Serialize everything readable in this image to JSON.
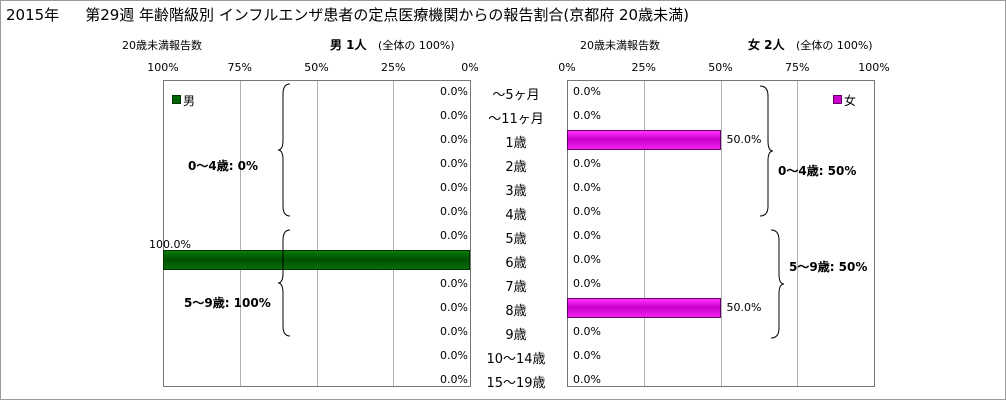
{
  "title": {
    "year": "2015年",
    "text": "第29週 年齢階級別 インフルエンザ患者の定点医療機関からの報告割合(京都府 20歳未満)"
  },
  "left_panel": {
    "count_label": "20歳未満報告数",
    "header": "男 1人",
    "header_note": "(全体の 100%)",
    "ticks": [
      "100%",
      "75%",
      "50%",
      "25%",
      "0%"
    ],
    "legend": "男",
    "bar_color": "#006400",
    "values": [
      0,
      0,
      0,
      0,
      0,
      0,
      0,
      100,
      0,
      0,
      0,
      0,
      0
    ],
    "value_labels": [
      "0.0%",
      "0.0%",
      "0.0%",
      "0.0%",
      "0.0%",
      "0.0%",
      "0.0%",
      "100.0%",
      "0.0%",
      "0.0%",
      "0.0%",
      "0.0%",
      "0.0%"
    ],
    "groups": [
      "0〜4歳: 0%",
      "5〜9歳: 100%"
    ]
  },
  "right_panel": {
    "count_label": "20歳未満報告数",
    "header": "女 2人",
    "header_note": "(全体の 100%)",
    "ticks": [
      "0%",
      "25%",
      "50%",
      "75%",
      "100%"
    ],
    "legend": "女",
    "bar_color": "#cc00cc",
    "values": [
      0,
      0,
      50,
      0,
      0,
      0,
      0,
      0,
      0,
      50,
      0,
      0,
      0
    ],
    "value_labels": [
      "0.0%",
      "0.0%",
      "50.0%",
      "0.0%",
      "0.0%",
      "0.0%",
      "0.0%",
      "0.0%",
      "0.0%",
      "50.0%",
      "0.0%",
      "0.0%",
      "0.0%"
    ],
    "groups": [
      "0〜4歳: 50%",
      "5〜9歳: 50%"
    ]
  },
  "chart_data": {
    "type": "bar",
    "title": "第29週 年齢階級別 インフルエンザ患者の定点医療機関からの報告割合(京都府 20歳未満)",
    "orientation": "horizontal-butterfly",
    "categories": [
      "〜5ヶ月",
      "〜11ヶ月",
      "1歳",
      "2歳",
      "3歳",
      "4歳",
      "5歳",
      "6歳",
      "7歳",
      "8歳",
      "9歳",
      "10〜14歳",
      "15〜19歳"
    ],
    "series": [
      {
        "name": "男",
        "values": [
          0,
          0,
          0,
          0,
          0,
          0,
          0,
          100,
          0,
          0,
          0,
          0,
          0
        ]
      },
      {
        "name": "女",
        "values": [
          0,
          0,
          50,
          0,
          0,
          0,
          0,
          0,
          0,
          50,
          0,
          0,
          0
        ]
      }
    ],
    "xlim": [
      0,
      100
    ],
    "grid": true
  }
}
